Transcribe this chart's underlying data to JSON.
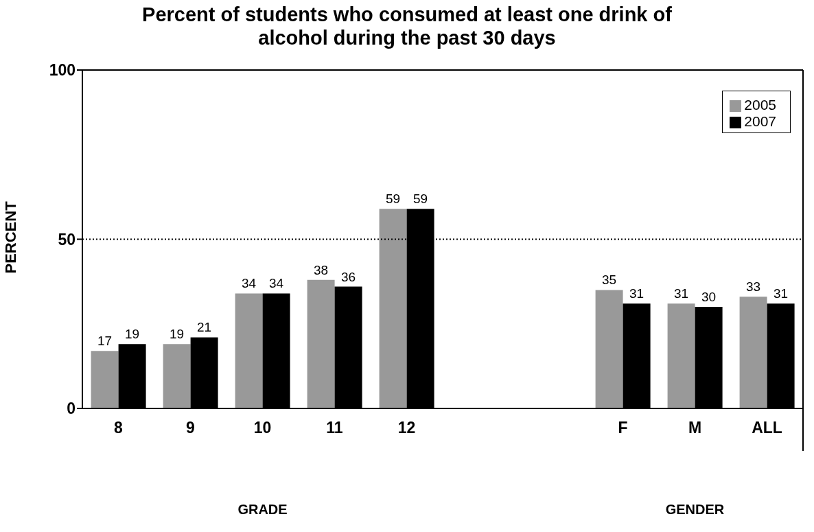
{
  "chart_data": {
    "type": "bar",
    "title": "Percent of students who consumed at least one drink of alcohol during the past 30 days",
    "ylabel": "PERCENT",
    "annotations": [
      "GRADE",
      "GENDER"
    ],
    "categories": [
      "8",
      "9",
      "10",
      "11",
      "12",
      null,
      null,
      "F",
      "M",
      "ALL"
    ],
    "series": [
      {
        "name": "2005",
        "color": "#999999",
        "values": [
          17,
          19,
          34,
          38,
          59,
          null,
          null,
          35,
          31,
          33
        ]
      },
      {
        "name": "2007",
        "color": "#000000",
        "values": [
          19,
          21,
          34,
          36,
          59,
          null,
          null,
          31,
          30,
          31
        ]
      }
    ],
    "ylim": [
      0,
      100
    ],
    "yticks": [
      0,
      50,
      100
    ],
    "grid": false,
    "legend": "top right",
    "data_labels": true,
    "ref_lines": [
      {
        "axis": "y",
        "value": 50,
        "line_style": "dotted"
      }
    ]
  }
}
